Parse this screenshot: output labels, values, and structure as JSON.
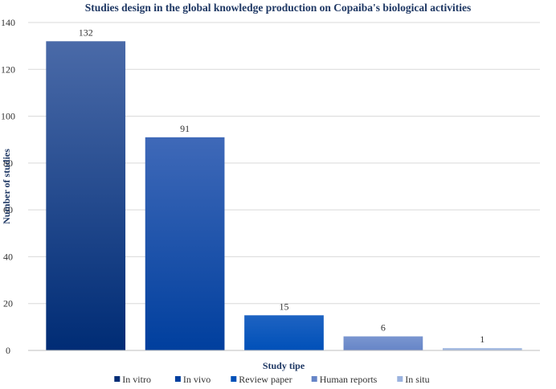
{
  "chart_data": {
    "type": "bar",
    "title": "Studies design in the global knowledge production  on Copaiba's biological activities",
    "xlabel": "Study tipe",
    "ylabel": "Number of studies",
    "ylim": [
      0,
      140
    ],
    "yticks": [
      0,
      20,
      40,
      60,
      80,
      100,
      120,
      140
    ],
    "grid": true,
    "legend_position": "bottom",
    "categories": [
      "In vitro",
      "In vivo",
      "Review paper",
      "Human reports",
      "In situ"
    ],
    "values": [
      132,
      91,
      15,
      6,
      1
    ],
    "colors": {
      "In vitro": [
        "#4a6aa8",
        "#002c75"
      ],
      "In vivo": [
        "#3f69b8",
        "#003f9e"
      ],
      "Review paper": [
        "#1e63c2",
        "#0050b8"
      ],
      "Human reports": [
        "#7a96d0",
        "#6685c7"
      ],
      "In situ": [
        "#a9bfe3",
        "#9bb3df"
      ]
    }
  }
}
